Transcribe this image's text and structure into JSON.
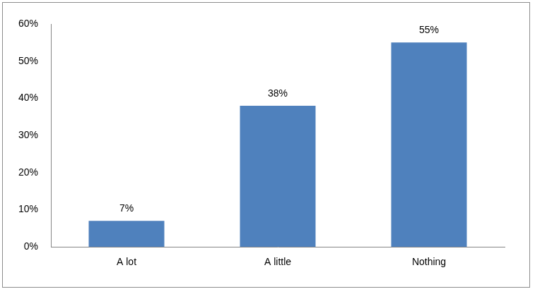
{
  "chart_data": {
    "type": "bar",
    "categories": [
      "A lot",
      "A little",
      "Nothing"
    ],
    "values": [
      7,
      38,
      55
    ],
    "value_labels": [
      "7%",
      "38%",
      "55%"
    ],
    "data_labels": true,
    "color": "#4f81bd",
    "ylim": [
      0,
      60
    ],
    "yticks": [
      {
        "value": 0,
        "label": "0%"
      },
      {
        "value": 10,
        "label": "10%"
      },
      {
        "value": 20,
        "label": "20%"
      },
      {
        "value": 30,
        "label": "30%"
      },
      {
        "value": 40,
        "label": "40%"
      },
      {
        "value": 50,
        "label": "50%"
      },
      {
        "value": 60,
        "label": "60%"
      }
    ],
    "grid": false
  }
}
